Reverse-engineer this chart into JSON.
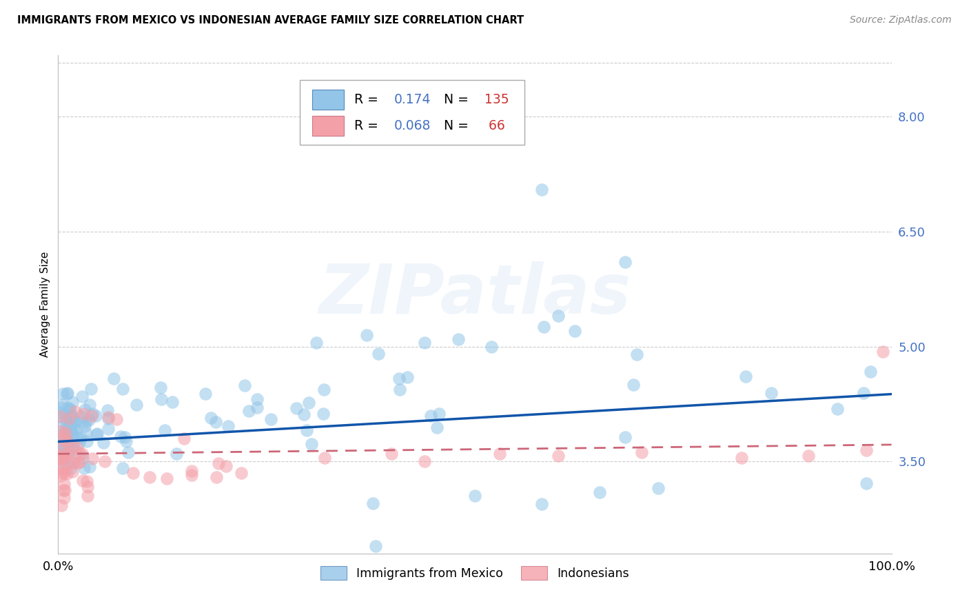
{
  "title": "IMMIGRANTS FROM MEXICO VS INDONESIAN AVERAGE FAMILY SIZE CORRELATION CHART",
  "source": "Source: ZipAtlas.com",
  "ylabel": "Average Family Size",
  "xlim": [
    0.0,
    1.0
  ],
  "ylim": [
    2.3,
    8.8
  ],
  "yticks": [
    3.5,
    5.0,
    6.5,
    8.0
  ],
  "yticklabels": [
    "3.50",
    "5.00",
    "6.50",
    "8.00"
  ],
  "xticks": [
    0.0,
    0.25,
    0.5,
    0.75,
    1.0
  ],
  "xticklabels": [
    "0.0%",
    "",
    "",
    "",
    "100.0%"
  ],
  "R_mexico": 0.174,
  "N_mexico": 135,
  "R_indonesia": 0.068,
  "N_indonesia": 66,
  "blue_color": "#92c5e8",
  "pink_color": "#f4a0a8",
  "trend_blue": "#1155aa",
  "trend_pink": "#cc6677",
  "watermark": "ZIPatlas",
  "legend_entries": [
    "Immigrants from Mexico",
    "Indonesians"
  ],
  "blue_R_color": "#4472c4",
  "blue_N_color": "#cc3333",
  "pink_R_color": "#4472c4",
  "pink_N_color": "#cc3333",
  "mex_trend_y0": 3.76,
  "mex_trend_y1": 4.38,
  "ind_trend_y0": 3.6,
  "ind_trend_y1": 3.72,
  "grid_color": "#cccccc",
  "scatter_alpha": 0.55,
  "scatter_size": 180
}
